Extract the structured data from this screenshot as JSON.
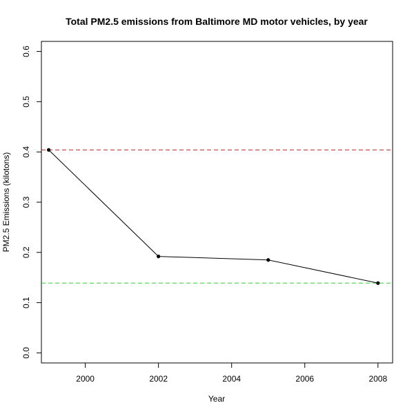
{
  "chart_data": {
    "type": "line",
    "title": "Total PM2.5 emissions from Baltimore MD motor vehicles, by year",
    "xlabel": "Year",
    "ylabel": "PM2.5 Emissions (kilotons)",
    "x": [
      1999,
      2002,
      2005,
      2008
    ],
    "series": [
      {
        "values": [
          0.404,
          0.192,
          0.185,
          0.139
        ],
        "color": "#000000",
        "marker": "filled-circle"
      }
    ],
    "reference_lines": [
      {
        "y": 0.404,
        "color": "#b22222",
        "style": "dashed"
      },
      {
        "y": 0.139,
        "color": "#32cd32",
        "style": "dashed"
      }
    ],
    "xlim": [
      1998.8,
      2008.4
    ],
    "ylim": [
      -0.02,
      0.62
    ],
    "xticks": [
      2000,
      2002,
      2004,
      2006,
      2008
    ],
    "yticks": [
      "0.0",
      "0.1",
      "0.2",
      "0.3",
      "0.4",
      "0.5",
      "0.6"
    ],
    "grid": false,
    "legend": "none"
  }
}
